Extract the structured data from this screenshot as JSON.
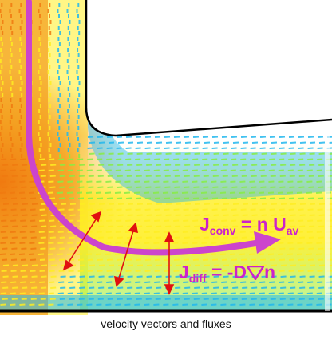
{
  "caption": "velocity vectors and fluxes",
  "labels": {
    "conv": {
      "main": "J",
      "sub": "conv",
      "mid": " = n U",
      "sub2": "av"
    },
    "diff": {
      "main": "J",
      "sub": "diff",
      "mid": " = -D",
      "tail": "n"
    }
  },
  "colors": {
    "label": "#cc22cc",
    "arrow": "#cc44cc",
    "diff_arrow": "#e01010",
    "wall": "#000000",
    "field_hot": "#f07a10",
    "field_mid": "#ffee22",
    "field_green": "#88ee44",
    "field_cold": "#22b8ee"
  },
  "icons": {
    "flow_arrow": "curved-arrow-icon",
    "gradient": "nabla-icon"
  }
}
